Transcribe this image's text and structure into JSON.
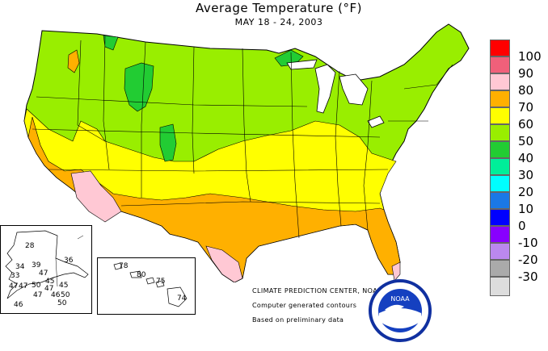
{
  "title": "Average Temperature (°F)",
  "subtitle": "MAY 18 - 24, 2003",
  "legend": [
    {
      "label": "100",
      "color": "#ff0000"
    },
    {
      "label": "90",
      "color": "#f0607a"
    },
    {
      "label": "80",
      "color": "#ffc8d4"
    },
    {
      "label": "70",
      "color": "#ffb000"
    },
    {
      "label": "60",
      "color": "#ffff00"
    },
    {
      "label": "50",
      "color": "#99ee00"
    },
    {
      "label": "40",
      "color": "#22cc33"
    },
    {
      "label": "30",
      "color": "#00ee99"
    },
    {
      "label": "20",
      "color": "#00ffff"
    },
    {
      "label": "10",
      "color": "#1a78e6"
    },
    {
      "label": "0",
      "color": "#0000ff"
    },
    {
      "label": "-10",
      "color": "#8800ff"
    },
    {
      "label": "-20",
      "color": "#bb88ee"
    },
    {
      "label": "-30",
      "color": "#aaaaaa"
    }
  ],
  "legend_bottom_swatch": "#dddddd",
  "credits": {
    "line1": "CLIMATE PREDICTION CENTER, NOAA",
    "line2": "Computer generated contours",
    "line3": "Based on preliminary data"
  },
  "alaska_values": [
    "28",
    "36",
    "34",
    "39",
    "33",
    "47",
    "47",
    "45",
    "47",
    "50",
    "45",
    "47",
    "47",
    "46",
    "50",
    "50",
    "46"
  ],
  "hawaii_values": [
    "78",
    "80",
    "75",
    "74"
  ],
  "logo_text": "NOAA"
}
